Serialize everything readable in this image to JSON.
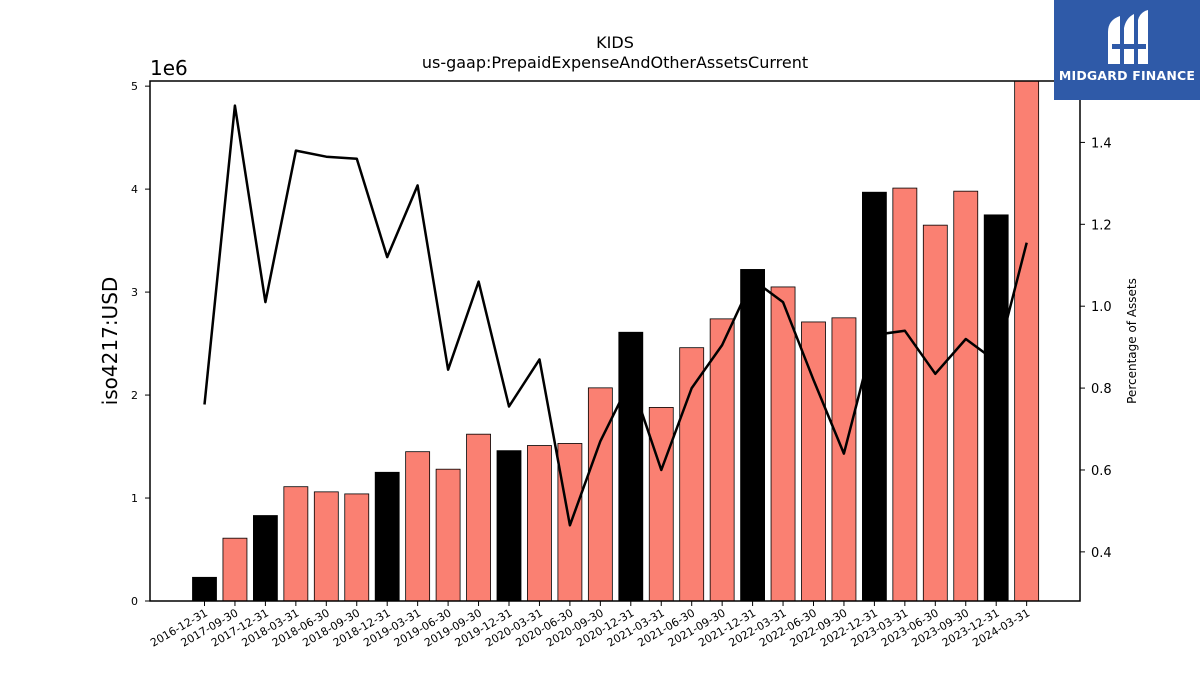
{
  "chart_data": {
    "type": "bar",
    "title": "KIDS",
    "subtitle": "us-gaap:PrepaidExpenseAndOtherAssetsCurrent",
    "ylabel": "iso4217:USD",
    "y_scale_label": "1e6",
    "y2label": "Percentage of Assets",
    "ylim": [
      0,
      5050000
    ],
    "y_ticks": [
      0,
      1,
      2,
      3,
      4,
      5
    ],
    "y2lim": [
      0.28,
      1.55
    ],
    "y2_ticks": [
      "0.4",
      "0.6",
      "0.8",
      "1.0",
      "1.2",
      "1.4"
    ],
    "categories": [
      "2016-12-31",
      "2017-09-30",
      "2017-12-31",
      "2018-03-31",
      "2018-06-30",
      "2018-09-30",
      "2018-12-31",
      "2019-03-31",
      "2019-06-30",
      "2019-09-30",
      "2019-12-31",
      "2020-03-31",
      "2020-06-30",
      "2020-09-30",
      "2020-12-31",
      "2021-03-31",
      "2021-06-30",
      "2021-09-30",
      "2021-12-31",
      "2022-03-31",
      "2022-06-30",
      "2022-09-30",
      "2022-12-31",
      "2023-03-31",
      "2023-06-30",
      "2023-09-30",
      "2023-12-31",
      "2024-03-31"
    ],
    "values": [
      230000,
      610000,
      830000,
      1110000,
      1060000,
      1040000,
      1250000,
      1450000,
      1280000,
      1620000,
      1460000,
      1510000,
      1530000,
      2070000,
      2610000,
      1880000,
      2460000,
      2740000,
      3220000,
      3050000,
      2710000,
      2750000,
      3970000,
      4010000,
      3650000,
      3980000,
      3750000,
      5070000
    ],
    "bar_kind": [
      "annual",
      "quarterly",
      "annual",
      "quarterly",
      "quarterly",
      "quarterly",
      "annual",
      "quarterly",
      "quarterly",
      "quarterly",
      "annual",
      "quarterly",
      "quarterly",
      "quarterly",
      "annual",
      "quarterly",
      "quarterly",
      "quarterly",
      "annual",
      "quarterly",
      "quarterly",
      "quarterly",
      "annual",
      "quarterly",
      "quarterly",
      "quarterly",
      "annual",
      "quarterly"
    ],
    "percent_of_assets": [
      0.76,
      1.49,
      1.01,
      1.38,
      1.365,
      1.36,
      1.12,
      1.295,
      0.845,
      1.06,
      0.755,
      0.87,
      0.465,
      0.67,
      0.82,
      0.6,
      0.8,
      0.905,
      1.065,
      1.01,
      0.82,
      0.64,
      0.93,
      0.94,
      0.835,
      0.92,
      0.865,
      1.155
    ],
    "colors": {
      "annual": "#000000",
      "quarterly": "#fa8072",
      "line": "#000000"
    },
    "grid": false,
    "legend": "none"
  },
  "logo": {
    "text": "MIDGARD FINANCE",
    "icon": "midgard-logo-icon"
  }
}
